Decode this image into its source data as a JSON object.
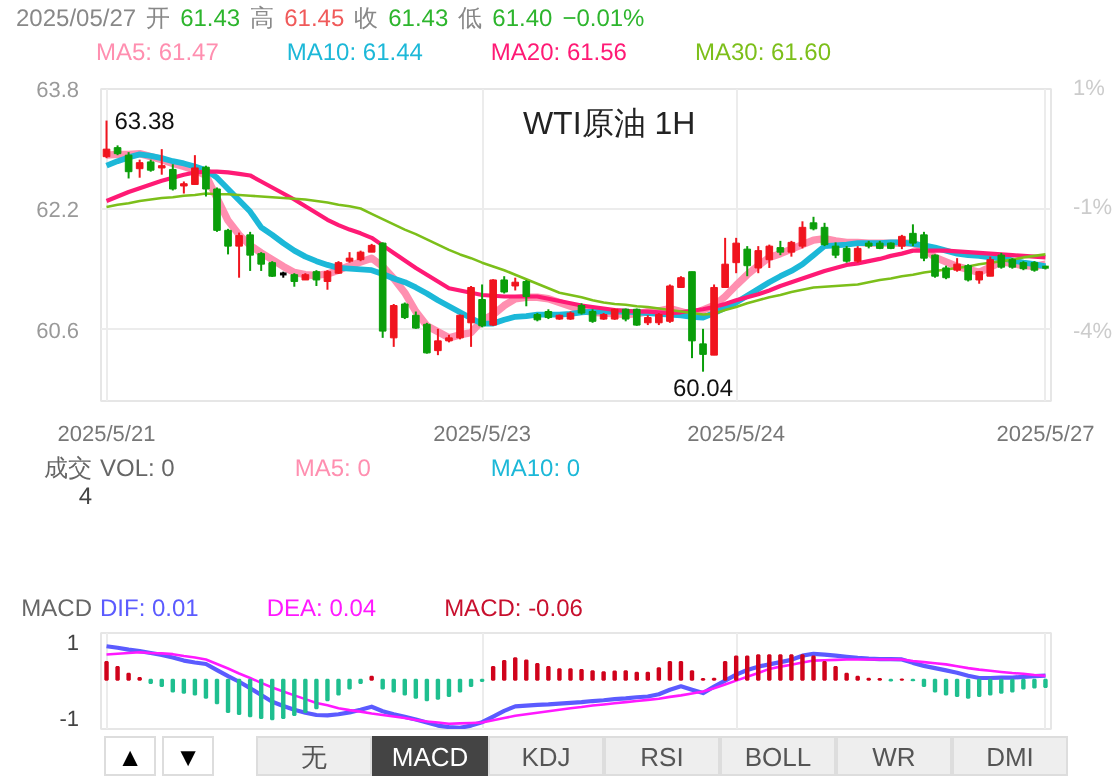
{
  "chart_data": [
    {
      "type": "candlestick",
      "title": "WTI原油 1H",
      "annotations": [
        "2025/05/27",
        "开",
        "61.43",
        "高",
        "61.45",
        "收",
        "61.43",
        "低",
        "61.40",
        "−0.01%",
        {
          "text": "63.38",
          "x": "2025/5/21",
          "y": 63.38
        },
        {
          "text": "60.04",
          "y": 60.04
        }
      ],
      "categories": [
        "2025/5/21",
        null,
        null,
        null,
        null,
        null,
        null,
        null,
        null,
        null,
        null,
        null,
        null,
        null,
        null,
        null,
        null,
        null,
        null,
        null,
        null,
        null,
        null,
        null,
        null,
        null,
        null,
        null,
        null,
        null,
        null,
        null,
        null,
        null,
        "2025/5/23",
        null,
        null,
        null,
        null,
        null,
        null,
        null,
        null,
        null,
        null,
        null,
        null,
        null,
        null,
        null,
        null,
        null,
        null,
        null,
        null,
        null,
        null,
        "2025/5/24",
        null,
        null,
        null,
        null,
        null,
        null,
        null,
        null,
        null,
        null,
        null,
        null,
        null,
        null,
        null,
        null,
        null,
        null,
        null,
        null,
        null,
        null,
        null,
        null,
        null,
        null,
        null,
        "2025/5/27"
      ],
      "ohlc": [
        [
          62.9,
          63.38,
          62.88,
          63.0
        ],
        [
          63.02,
          63.05,
          62.92,
          62.94
        ],
        [
          62.92,
          62.96,
          62.61,
          62.7
        ],
        [
          62.74,
          62.86,
          62.62,
          62.82
        ],
        [
          62.83,
          62.86,
          62.7,
          62.72
        ],
        [
          62.75,
          63.0,
          62.66,
          62.78
        ],
        [
          62.73,
          62.8,
          62.45,
          62.47
        ],
        [
          62.51,
          62.57,
          62.41,
          62.54
        ],
        [
          62.53,
          62.92,
          62.53,
          62.75
        ],
        [
          62.76,
          62.78,
          62.37,
          62.47
        ],
        [
          62.47,
          62.49,
          61.9,
          61.92
        ],
        [
          61.92,
          61.94,
          61.6,
          61.71
        ],
        [
          61.71,
          61.89,
          61.29,
          61.85
        ],
        [
          61.86,
          61.9,
          61.38,
          61.59
        ],
        [
          61.61,
          61.63,
          61.38,
          61.47
        ],
        [
          61.49,
          61.51,
          61.3,
          61.31
        ],
        [
          61.34,
          61.37,
          61.29,
          61.34
        ],
        [
          61.33,
          61.35,
          61.17,
          61.24
        ],
        [
          61.26,
          61.35,
          61.26,
          61.33
        ],
        [
          61.37,
          61.39,
          61.18,
          61.26
        ],
        [
          61.24,
          61.39,
          61.13,
          61.37
        ],
        [
          61.35,
          61.51,
          61.34,
          61.49
        ],
        [
          61.51,
          61.63,
          61.49,
          61.55
        ],
        [
          61.53,
          61.65,
          61.51,
          61.63
        ],
        [
          61.63,
          61.74,
          61.63,
          61.72
        ],
        [
          61.75,
          61.76,
          60.49,
          60.58
        ],
        [
          60.49,
          60.94,
          60.37,
          60.92
        ],
        [
          60.94,
          60.96,
          60.74,
          60.76
        ],
        [
          60.79,
          60.84,
          60.61,
          60.62
        ],
        [
          60.67,
          60.69,
          60.28,
          60.29
        ],
        [
          60.32,
          60.61,
          60.26,
          60.45
        ],
        [
          60.45,
          60.53,
          60.43,
          60.49
        ],
        [
          60.49,
          60.8,
          60.47,
          60.79
        ],
        [
          60.69,
          61.18,
          60.37,
          61.16
        ],
        [
          61.0,
          61.2,
          60.63,
          60.65
        ],
        [
          60.66,
          61.27,
          60.65,
          61.26
        ],
        [
          61.26,
          61.31,
          61.08,
          61.1
        ],
        [
          61.18,
          61.29,
          61.12,
          61.23
        ],
        [
          61.24,
          61.26,
          60.91,
          61.04
        ],
        [
          60.8,
          60.82,
          60.71,
          60.73
        ],
        [
          60.84,
          60.87,
          60.74,
          60.76
        ],
        [
          60.74,
          60.8,
          60.73,
          60.79
        ],
        [
          60.74,
          60.84,
          60.73,
          60.82
        ],
        [
          60.92,
          60.95,
          60.8,
          60.82
        ],
        [
          60.84,
          60.87,
          60.69,
          60.71
        ],
        [
          60.74,
          60.82,
          60.73,
          60.8
        ],
        [
          60.74,
          60.88,
          60.73,
          60.87
        ],
        [
          60.87,
          60.88,
          60.71,
          60.74
        ],
        [
          60.87,
          60.88,
          60.65,
          60.66
        ],
        [
          60.69,
          60.79,
          60.66,
          60.76
        ],
        [
          60.69,
          60.82,
          60.66,
          60.8
        ],
        [
          60.71,
          61.2,
          60.69,
          61.18
        ],
        [
          61.16,
          61.31,
          61.16,
          61.29
        ],
        [
          61.37,
          61.37,
          60.22,
          60.45
        ],
        [
          60.41,
          60.61,
          60.04,
          60.27
        ],
        [
          60.26,
          61.2,
          60.26,
          61.16
        ],
        [
          61.16,
          61.82,
          61.16,
          61.47
        ],
        [
          61.49,
          61.82,
          61.35,
          61.75
        ],
        [
          61.67,
          61.71,
          61.31,
          61.45
        ],
        [
          61.42,
          61.71,
          61.35,
          61.65
        ],
        [
          61.53,
          61.73,
          61.42,
          61.71
        ],
        [
          61.69,
          61.78,
          61.59,
          61.63
        ],
        [
          61.63,
          61.78,
          61.57,
          61.76
        ],
        [
          61.71,
          62.04,
          61.68,
          61.96
        ],
        [
          62.02,
          62.1,
          61.92,
          61.94
        ],
        [
          61.96,
          62.02,
          61.71,
          61.73
        ],
        [
          61.71,
          61.76,
          61.55,
          61.59
        ],
        [
          61.68,
          61.71,
          61.49,
          61.51
        ],
        [
          61.51,
          61.71,
          61.49,
          61.68
        ],
        [
          61.75,
          61.78,
          61.68,
          61.71
        ],
        [
          61.75,
          61.78,
          61.67,
          61.68
        ],
        [
          61.75,
          61.76,
          61.67,
          61.68
        ],
        [
          61.71,
          61.86,
          61.67,
          61.84
        ],
        [
          61.88,
          62.0,
          61.71,
          61.75
        ],
        [
          61.86,
          61.9,
          61.51,
          61.55
        ],
        [
          61.59,
          61.6,
          61.29,
          61.31
        ],
        [
          61.42,
          61.45,
          61.27,
          61.29
        ],
        [
          61.39,
          61.55,
          61.37,
          61.47
        ],
        [
          61.45,
          61.47,
          61.24,
          61.26
        ],
        [
          61.26,
          61.38,
          61.21,
          61.37
        ],
        [
          61.31,
          61.57,
          61.31,
          61.53
        ],
        [
          61.59,
          61.62,
          61.41,
          61.43
        ],
        [
          61.53,
          61.55,
          61.41,
          61.43
        ],
        [
          61.49,
          61.51,
          61.39,
          61.41
        ],
        [
          61.49,
          61.51,
          61.37,
          61.39
        ],
        [
          61.43,
          61.45,
          61.4,
          61.43
        ]
      ],
      "colors": [
        "#f0141e",
        "#0a9e0a",
        "#0a9e0a",
        "#f0141e",
        "#0a9e0a",
        "#f0141e",
        "#0a9e0a",
        "#f0141e",
        "#f0141e",
        "#0a9e0a",
        "#0a9e0a",
        "#0a9e0a",
        "#f0141e",
        "#0a9e0a",
        "#0a9e0a",
        "#0a9e0a",
        "#000000",
        "#0a9e0a",
        "#f0141e",
        "#0a9e0a",
        "#f0141e",
        "#f0141e",
        "#f0141e",
        "#f0141e",
        "#f0141e",
        "#0a9e0a",
        "#f0141e",
        "#0a9e0a",
        "#0a9e0a",
        "#0a9e0a",
        "#f0141e",
        "#f0141e",
        "#f0141e",
        "#f0141e",
        "#0a9e0a",
        "#f0141e",
        "#0a9e0a",
        "#f0141e",
        "#0a9e0a",
        "#0a9e0a",
        "#0a9e0a",
        "#f0141e",
        "#f0141e",
        "#0a9e0a",
        "#0a9e0a",
        "#f0141e",
        "#f0141e",
        "#0a9e0a",
        "#0a9e0a",
        "#f0141e",
        "#f0141e",
        "#f0141e",
        "#f0141e",
        "#0a9e0a",
        "#0a9e0a",
        "#f0141e",
        "#f0141e",
        "#f0141e",
        "#0a9e0a",
        "#f0141e",
        "#f0141e",
        "#0a9e0a",
        "#f0141e",
        "#f0141e",
        "#0a9e0a",
        "#0a9e0a",
        "#0a9e0a",
        "#0a9e0a",
        "#f0141e",
        "#0a9e0a",
        "#0a9e0a",
        "#0a9e0a",
        "#f0141e",
        "#0a9e0a",
        "#0a9e0a",
        "#0a9e0a",
        "#0a9e0a",
        "#f0141e",
        "#0a9e0a",
        "#f0141e",
        "#f0141e",
        "#0a9e0a",
        "#0a9e0a",
        "#0a9e0a",
        "#0a9e0a",
        "#0a9e0a"
      ],
      "series": [
        {
          "name": "MA5: 61.47",
          "type": "line",
          "color": "#ff8fb0",
          "values": [
            62.92,
            62.93,
            62.93,
            62.94,
            62.9,
            62.86,
            62.81,
            62.77,
            62.72,
            62.65,
            62.35,
            62.05,
            61.86,
            61.72,
            61.62,
            61.53,
            61.44,
            61.36,
            61.33,
            61.32,
            61.34,
            61.39,
            61.45,
            61.5,
            61.55,
            61.44,
            61.28,
            61.09,
            60.84,
            60.65,
            60.57,
            60.49,
            60.53,
            60.56,
            60.72,
            60.8,
            60.92,
            61.01,
            61.03,
            61.03,
            61.01,
            60.96,
            60.91,
            60.86,
            60.83,
            60.82,
            60.81,
            60.8,
            60.81,
            60.84,
            60.85,
            60.88,
            60.84,
            60.8,
            60.86,
            60.92,
            61.04,
            61.19,
            61.33,
            61.45,
            61.56,
            61.61,
            61.67,
            61.73,
            61.79,
            61.81,
            61.78,
            61.76,
            61.76,
            61.75,
            61.75,
            61.75,
            61.75,
            61.75,
            61.68,
            61.56,
            61.5,
            61.44,
            61.4,
            61.36,
            61.43,
            61.5,
            61.48,
            61.45,
            61.44,
            61.47
          ]
        },
        {
          "name": "MA10: 61.44",
          "type": "line",
          "color": "#1cb8d8",
          "values": [
            62.78,
            62.84,
            62.89,
            62.93,
            62.91,
            62.88,
            62.84,
            62.81,
            62.77,
            62.72,
            62.62,
            62.47,
            62.32,
            62.17,
            61.96,
            61.86,
            61.75,
            61.65,
            61.57,
            61.51,
            61.46,
            61.42,
            61.41,
            61.4,
            61.39,
            61.34,
            61.28,
            61.23,
            61.16,
            61.08,
            60.99,
            60.91,
            60.83,
            60.75,
            60.68,
            60.68,
            60.73,
            60.77,
            60.78,
            60.8,
            60.8,
            60.8,
            60.81,
            60.83,
            60.84,
            60.84,
            60.84,
            60.84,
            60.83,
            60.82,
            60.81,
            60.8,
            60.79,
            60.77,
            60.76,
            60.82,
            60.89,
            60.96,
            61.05,
            61.14,
            61.23,
            61.31,
            61.38,
            61.47,
            61.59,
            61.71,
            61.72,
            61.73,
            61.75,
            61.75,
            61.75,
            61.76,
            61.76,
            61.74,
            61.72,
            61.69,
            61.65,
            61.61,
            61.59,
            61.58,
            61.56,
            61.55,
            61.52,
            61.49,
            61.47,
            61.44
          ]
        },
        {
          "name": "MA20: 61.56",
          "type": "line",
          "color": "#ff1a75",
          "values": [
            62.31,
            62.37,
            62.43,
            62.48,
            62.53,
            62.58,
            62.62,
            62.66,
            62.69,
            62.7,
            62.7,
            62.69,
            62.67,
            62.65,
            62.57,
            62.49,
            62.41,
            62.33,
            62.24,
            62.15,
            62.06,
            61.99,
            61.93,
            61.88,
            61.82,
            61.72,
            61.62,
            61.52,
            61.42,
            61.33,
            61.24,
            61.15,
            61.12,
            61.09,
            61.06,
            61.05,
            61.04,
            61.04,
            61.04,
            61.04,
            61.01,
            60.98,
            60.95,
            60.92,
            60.9,
            60.88,
            60.86,
            60.85,
            60.84,
            60.84,
            60.83,
            60.82,
            60.83,
            60.85,
            60.87,
            60.9,
            60.94,
            60.99,
            61.03,
            61.07,
            61.12,
            61.18,
            61.23,
            61.28,
            61.33,
            61.38,
            61.42,
            61.46,
            61.48,
            61.51,
            61.54,
            61.58,
            61.61,
            61.65,
            61.65,
            61.65,
            61.65,
            61.64,
            61.63,
            61.62,
            61.61,
            61.6,
            61.59,
            61.58,
            61.57,
            61.56
          ]
        },
        {
          "name": "MA30: 61.60",
          "type": "line",
          "color": "#7cbf1a",
          "values": [
            62.23,
            62.26,
            62.28,
            62.31,
            62.33,
            62.35,
            62.36,
            62.38,
            62.39,
            62.41,
            62.4,
            62.4,
            62.39,
            62.38,
            62.37,
            62.36,
            62.35,
            62.34,
            62.33,
            62.31,
            62.29,
            62.26,
            62.24,
            62.21,
            62.14,
            62.07,
            62.0,
            61.93,
            61.87,
            61.8,
            61.73,
            61.66,
            61.6,
            61.55,
            61.49,
            61.44,
            61.39,
            61.33,
            61.27,
            61.21,
            61.15,
            61.09,
            61.06,
            61.03,
            60.99,
            60.96,
            60.94,
            60.93,
            60.91,
            60.9,
            60.88,
            60.86,
            60.84,
            60.82,
            60.8,
            60.81,
            60.86,
            60.9,
            60.95,
            60.99,
            61.03,
            61.06,
            61.1,
            61.13,
            61.16,
            61.17,
            61.18,
            61.19,
            61.2,
            61.23,
            61.26,
            61.28,
            61.31,
            61.33,
            61.36,
            61.38,
            61.4,
            61.42,
            61.44,
            61.47,
            61.49,
            61.51,
            61.53,
            61.56,
            61.58,
            61.6
          ]
        }
      ],
      "ylim": [
        59.65,
        63.8
      ],
      "yticks": [
        63.8,
        62.2,
        60.6
      ],
      "y2lim": [
        -5.45,
        1.1
      ],
      "y2ticks": [
        {
          "value": 1.1,
          "label": "1%"
        },
        {
          "value": -1.4,
          "label": "-1%"
        },
        {
          "value": -4.0,
          "label": "-4%"
        }
      ],
      "grid": true,
      "legend": "top"
    },
    {
      "type": "other",
      "annotations": [
        "成交",
        "VOL: 0",
        "MA5: 0",
        "MA10: 0",
        "4"
      ]
    },
    {
      "type": "bar",
      "annotations": [
        "MACD",
        "▲",
        "▼",
        "无",
        "MACD",
        "KDJ",
        "RSI",
        "BOLL",
        "WR",
        "DMI"
      ],
      "categories": [
        "2025/5/21",
        null,
        null,
        null,
        null,
        null,
        null,
        null,
        null,
        null,
        null,
        null,
        null,
        null,
        null,
        null,
        null,
        null,
        null,
        null,
        null,
        null,
        null,
        null,
        null,
        null,
        null,
        null,
        null,
        null,
        null,
        null,
        null,
        null,
        "2025/5/23",
        null,
        null,
        null,
        null,
        null,
        null,
        null,
        null,
        null,
        null,
        null,
        null,
        null,
        null,
        null,
        null,
        null,
        null,
        null,
        null,
        null,
        null,
        "2025/5/24",
        null,
        null,
        null,
        null,
        null,
        null,
        null,
        null,
        null,
        null,
        null,
        null,
        null,
        null,
        null,
        null,
        null,
        null,
        null,
        null,
        null,
        null,
        null,
        null,
        null,
        null,
        null,
        "2025/5/27"
      ],
      "series": [
        {
          "name": "DIF: 0.01",
          "type": "line",
          "color": "#5b5bff",
          "values": [
            0.89,
            0.85,
            0.8,
            0.76,
            0.71,
            0.66,
            0.59,
            0.51,
            0.46,
            0.42,
            0.26,
            0.1,
            -0.05,
            -0.22,
            -0.4,
            -0.58,
            -0.69,
            -0.79,
            -0.87,
            -0.93,
            -0.94,
            -0.91,
            -0.86,
            -0.79,
            -0.71,
            -0.83,
            -0.91,
            -0.98,
            -1.05,
            -1.13,
            -1.21,
            -1.25,
            -1.27,
            -1.21,
            -1.12,
            -0.97,
            -0.82,
            -0.7,
            -0.68,
            -0.66,
            -0.65,
            -0.63,
            -0.61,
            -0.59,
            -0.56,
            -0.54,
            -0.51,
            -0.49,
            -0.46,
            -0.44,
            -0.38,
            -0.26,
            -0.17,
            -0.26,
            -0.35,
            -0.18,
            -0.02,
            0.14,
            0.26,
            0.35,
            0.41,
            0.47,
            0.53,
            0.64,
            0.69,
            0.67,
            0.64,
            0.61,
            0.58,
            0.56,
            0.55,
            0.55,
            0.54,
            0.45,
            0.37,
            0.31,
            0.25,
            0.19,
            0.11,
            0.05,
            0.05,
            0.06,
            0.06,
            0.08,
            0.1,
            0.11
          ]
        },
        {
          "name": "DEA: 0.04",
          "type": "line",
          "color": "#ff19ff",
          "values": [
            0.67,
            0.69,
            0.71,
            0.73,
            0.71,
            0.7,
            0.68,
            0.63,
            0.59,
            0.54,
            0.42,
            0.3,
            0.17,
            0.05,
            -0.08,
            -0.2,
            -0.31,
            -0.41,
            -0.51,
            -0.61,
            -0.67,
            -0.75,
            -0.8,
            -0.84,
            -0.89,
            -0.93,
            -0.97,
            -1.01,
            -1.06,
            -1.1,
            -1.13,
            -1.16,
            -1.15,
            -1.14,
            -1.13,
            -1.07,
            -1.01,
            -0.95,
            -0.91,
            -0.87,
            -0.83,
            -0.79,
            -0.75,
            -0.72,
            -0.68,
            -0.65,
            -0.62,
            -0.59,
            -0.56,
            -0.53,
            -0.5,
            -0.45,
            -0.41,
            -0.36,
            -0.31,
            -0.22,
            -0.12,
            -0.02,
            0.08,
            0.18,
            0.29,
            0.35,
            0.4,
            0.46,
            0.51,
            0.52,
            0.53,
            0.54,
            0.54,
            0.54,
            0.54,
            0.54,
            0.54,
            0.5,
            0.47,
            0.44,
            0.41,
            0.36,
            0.31,
            0.27,
            0.24,
            0.21,
            0.18,
            0.16,
            0.13,
            0.11
          ]
        },
        {
          "name": "MACD: -0.06",
          "type": "bar",
          "color": "#c8102e",
          "values": [
            0.47,
            0.34,
            0.16,
            0.05,
            -0.08,
            -0.16,
            -0.31,
            -0.34,
            -0.39,
            -0.47,
            -0.62,
            -0.85,
            -0.9,
            -0.96,
            -1.01,
            -1.04,
            -1.01,
            -0.93,
            -0.85,
            -0.75,
            -0.54,
            -0.39,
            -0.23,
            -0.08,
            0.08,
            -0.23,
            -0.31,
            -0.39,
            -0.47,
            -0.54,
            -0.5,
            -0.43,
            -0.31,
            -0.16,
            -0.03,
            0.34,
            0.5,
            0.57,
            0.51,
            0.42,
            0.34,
            0.28,
            0.28,
            0.26,
            0.23,
            0.2,
            0.22,
            0.23,
            0.19,
            0.19,
            0.31,
            0.47,
            0.47,
            0.23,
            0.02,
            0.03,
            0.47,
            0.62,
            0.62,
            0.65,
            0.65,
            0.65,
            0.65,
            0.65,
            0.62,
            0.47,
            0.34,
            0.16,
            0.08,
            0.03,
            0.02,
            -0.02,
            0.01,
            -0.01,
            -0.16,
            -0.31,
            -0.39,
            -0.43,
            -0.47,
            -0.43,
            -0.39,
            -0.34,
            -0.31,
            -0.23,
            -0.2,
            -0.19
          ],
          "colors": [
            "#d0021b",
            "#d0021b",
            "#d0021b",
            "#d0021b",
            "#1fbf8f",
            "#1fbf8f",
            "#1fbf8f",
            "#1fbf8f",
            "#1fbf8f",
            "#1fbf8f",
            "#1fbf8f",
            "#1fbf8f",
            "#1fbf8f",
            "#1fbf8f",
            "#1fbf8f",
            "#1fbf8f",
            "#1fbf8f",
            "#1fbf8f",
            "#1fbf8f",
            "#1fbf8f",
            "#1fbf8f",
            "#1fbf8f",
            "#1fbf8f",
            "#1fbf8f",
            "#d0021b",
            "#1fbf8f",
            "#1fbf8f",
            "#1fbf8f",
            "#1fbf8f",
            "#1fbf8f",
            "#1fbf8f",
            "#1fbf8f",
            "#1fbf8f",
            "#1fbf8f",
            "#1fbf8f",
            "#d0021b",
            "#d0021b",
            "#d0021b",
            "#d0021b",
            "#d0021b",
            "#d0021b",
            "#d0021b",
            "#d0021b",
            "#d0021b",
            "#d0021b",
            "#d0021b",
            "#d0021b",
            "#d0021b",
            "#d0021b",
            "#d0021b",
            "#d0021b",
            "#d0021b",
            "#d0021b",
            "#d0021b",
            "#d0021b",
            "#d0021b",
            "#d0021b",
            "#d0021b",
            "#d0021b",
            "#d0021b",
            "#d0021b",
            "#d0021b",
            "#d0021b",
            "#d0021b",
            "#d0021b",
            "#d0021b",
            "#d0021b",
            "#d0021b",
            "#d0021b",
            "#d0021b",
            "#d0021b",
            "#1fbf8f",
            "#d0021b",
            "#1fbf8f",
            "#1fbf8f",
            "#1fbf8f",
            "#1fbf8f",
            "#1fbf8f",
            "#1fbf8f",
            "#1fbf8f",
            "#1fbf8f",
            "#1fbf8f",
            "#1fbf8f",
            "#1fbf8f",
            "#1fbf8f",
            "#1fbf8f"
          ]
        }
      ],
      "ylim": [
        -1.3,
        1.24
      ],
      "yticks": [
        1,
        -1
      ],
      "grid": "x",
      "legend": "top",
      "tick_labels": "y"
    }
  ]
}
